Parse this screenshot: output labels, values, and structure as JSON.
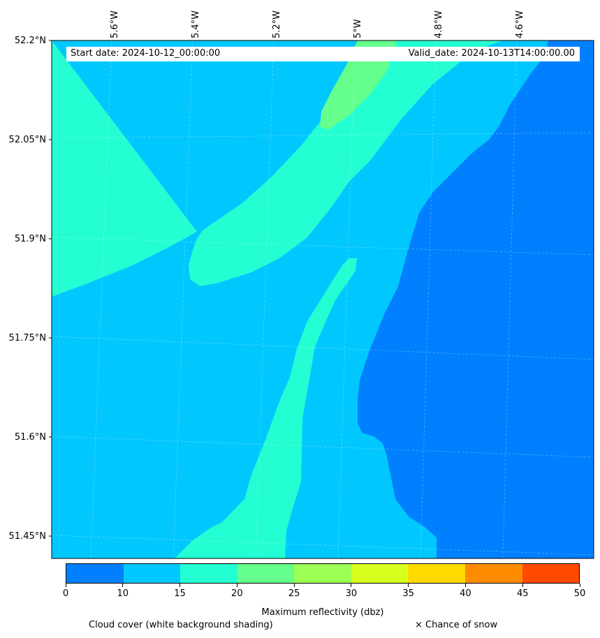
{
  "map": {
    "lon_labels": [
      "5.6°W",
      "5.4°W",
      "5.2°W",
      "5°W",
      "4.8°W",
      "4.6°W"
    ],
    "lat_labels": [
      "52.2°N",
      "52.05°N",
      "51.9°N",
      "51.75°N",
      "51.6°N",
      "51.45°N"
    ],
    "start_date": "Start date: 2024-10-12_00:00:00",
    "valid_date": "Valid_date: 2024-10-13T14:00:00.00"
  },
  "colorbar": {
    "ticks": [
      "0",
      "10",
      "15",
      "20",
      "25",
      "30",
      "35",
      "40",
      "45",
      "50"
    ],
    "colors": [
      "#0080ff",
      "#00c8ff",
      "#23ffd2",
      "#64ff8c",
      "#9cff54",
      "#d7ff1d",
      "#ffda00",
      "#ff8c00",
      "#ff4a00"
    ],
    "label": "Maximum reflectivity (dbz)"
  },
  "legend": {
    "cloud_cover": "Cloud cover (white background shading)",
    "snow": "× Chance of snow"
  }
}
